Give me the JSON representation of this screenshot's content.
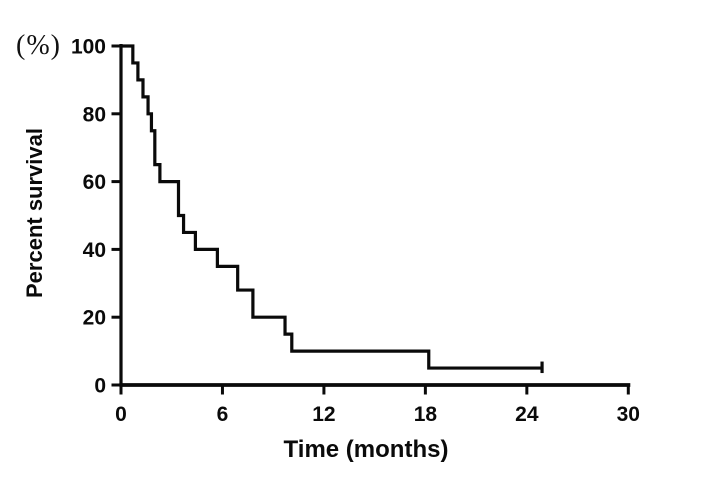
{
  "chart_data": {
    "type": "line",
    "style": "step-survival",
    "title": "",
    "xlabel": "Time (months)",
    "ylabel": "Percent survival",
    "y_unit_label": "(%)",
    "xlim": [
      0,
      30
    ],
    "ylim": [
      0,
      100
    ],
    "x_ticks": [
      0,
      6,
      12,
      18,
      24,
      30
    ],
    "y_ticks": [
      0,
      20,
      40,
      60,
      80,
      100
    ],
    "grid": false,
    "legend": "none",
    "line_color": "#0a0a0a",
    "series": [
      {
        "steps": [
          [
            0,
            100
          ],
          [
            0.7,
            95
          ],
          [
            1.0,
            90
          ],
          [
            1.3,
            85
          ],
          [
            1.6,
            80
          ],
          [
            1.8,
            75
          ],
          [
            2.0,
            65
          ],
          [
            2.3,
            60
          ],
          [
            3.4,
            50
          ],
          [
            3.7,
            45
          ],
          [
            4.4,
            40
          ],
          [
            5.7,
            35
          ],
          [
            6.9,
            28
          ],
          [
            7.8,
            20
          ],
          [
            9.7,
            15
          ],
          [
            10.1,
            10
          ],
          [
            18.2,
            5
          ]
        ],
        "censored": [
          [
            24.9,
            5
          ]
        ],
        "end_time": 24.9
      }
    ]
  }
}
